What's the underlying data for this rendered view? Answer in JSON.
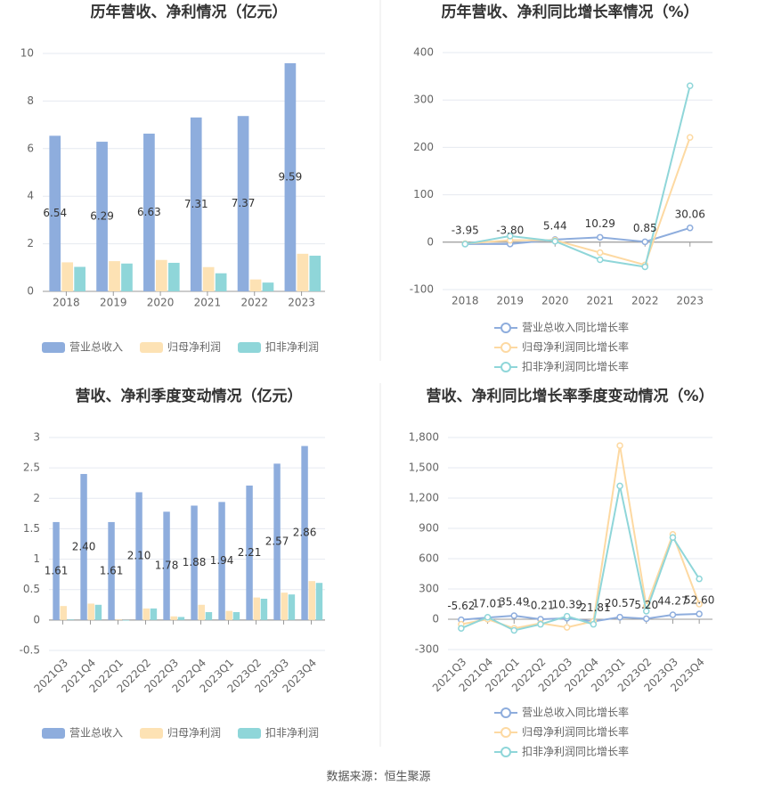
{
  "chart_data": [
    {
      "type": "bar",
      "title": "历年营收、净利情况（亿元）",
      "categories": [
        "2018",
        "2019",
        "2020",
        "2021",
        "2022",
        "2023"
      ],
      "series": [
        {
          "name": "营业总收入",
          "color": "#8eaddd",
          "values": [
            6.54,
            6.29,
            6.63,
            7.31,
            7.37,
            9.59
          ],
          "labels": true
        },
        {
          "name": "归母净利润",
          "color": "#fde2b4",
          "values": [
            1.22,
            1.27,
            1.32,
            1.02,
            0.5,
            1.58
          ]
        },
        {
          "name": "扣非净利润",
          "color": "#8fd6d9",
          "values": [
            1.03,
            1.17,
            1.2,
            0.76,
            0.37,
            1.5
          ]
        }
      ],
      "ylim": [
        0,
        10
      ],
      "yticks": [
        0,
        2,
        4,
        6,
        8,
        10
      ],
      "grid": true,
      "legend": "bottom"
    },
    {
      "type": "line",
      "title": "历年营收、净利同比增长率情况（%）",
      "categories": [
        "2018",
        "2019",
        "2020",
        "2021",
        "2022",
        "2023"
      ],
      "series": [
        {
          "name": "营业总收入同比增长率",
          "color": "#8eaddd",
          "values": [
            -3.95,
            -3.8,
            5.44,
            10.29,
            0.85,
            30.06
          ],
          "value_labels": [
            "-3.95",
            "-3.80",
            "5.44",
            "10.29",
            "0.85",
            "30.06"
          ],
          "labels": true
        },
        {
          "name": "归母净利润同比增长率",
          "color": "#fdd9a2",
          "values": [
            -3,
            4,
            4,
            -22,
            -48,
            221
          ]
        },
        {
          "name": "扣非净利润同比增长率",
          "color": "#8fd6d9",
          "values": [
            -4,
            13,
            2,
            -37,
            -52,
            330
          ]
        }
      ],
      "ylim": [
        -100,
        400
      ],
      "yticks": [
        -100,
        0,
        100,
        200,
        300,
        400
      ],
      "grid": true,
      "legend": "bottom"
    },
    {
      "type": "bar",
      "title": "营收、净利季度变动情况（亿元）",
      "categories": [
        "2021Q3",
        "2021Q4",
        "2022Q1",
        "2022Q2",
        "2022Q3",
        "2022Q4",
        "2023Q1",
        "2023Q2",
        "2023Q3",
        "2023Q4"
      ],
      "series": [
        {
          "name": "营业总收入",
          "color": "#8eaddd",
          "values": [
            1.61,
            2.4,
            1.61,
            2.1,
            1.78,
            1.88,
            1.94,
            2.21,
            2.57,
            2.86
          ],
          "value_labels": [
            "1.61",
            "2.40",
            "1.61",
            "2.10",
            "1.78",
            "1.88",
            "1.94",
            "2.21",
            "2.57",
            "2.86"
          ],
          "labels": true
        },
        {
          "name": "归母净利润",
          "color": "#fde2b4",
          "values": [
            0.23,
            0.27,
            0.01,
            0.19,
            0.06,
            0.25,
            0.15,
            0.37,
            0.45,
            0.64
          ]
        },
        {
          "name": "扣非净利润",
          "color": "#8fd6d9",
          "values": [
            0.01,
            0.25,
            -0.01,
            0.19,
            0.05,
            0.13,
            0.13,
            0.35,
            0.42,
            0.61
          ]
        }
      ],
      "ylim": [
        -0.5,
        3
      ],
      "yticks": [
        -0.5,
        0,
        0.5,
        1,
        1.5,
        2,
        2.5,
        3
      ],
      "grid": true,
      "legend": "bottom"
    },
    {
      "type": "line",
      "title": "营收、净利同比增长率季度变动情况（%）",
      "categories": [
        "2021Q3",
        "2021Q4",
        "2022Q1",
        "2022Q2",
        "2022Q3",
        "2022Q4",
        "2023Q1",
        "2023Q2",
        "2023Q3",
        "2023Q4"
      ],
      "series": [
        {
          "name": "营业总收入同比增长率",
          "color": "#8eaddd",
          "values": [
            -5.62,
            17.01,
            35.49,
            -0.21,
            10.39,
            -21.81,
            20.57,
            5.2,
            44.27,
            52.6
          ],
          "value_labels": [
            "-5.62",
            "17.01",
            "35.49",
            "-0.21",
            "10.39",
            "-21.81",
            "20.57",
            "5.20",
            "44.27",
            "52.60"
          ],
          "labels": true
        },
        {
          "name": "归母净利润同比增长率",
          "color": "#fdd9a2",
          "values": [
            -50,
            0,
            -90,
            -40,
            -80,
            -20,
            1720,
            130,
            840,
            150
          ]
        },
        {
          "name": "扣非净利润同比增长率",
          "color": "#8fd6d9",
          "values": [
            -90,
            20,
            -110,
            -50,
            30,
            -50,
            1320,
            80,
            810,
            400
          ]
        }
      ],
      "ylim": [
        -300,
        1800
      ],
      "yticks": [
        -300,
        0,
        300,
        600,
        900,
        {
          "value": 1200,
          "label": "1,200"
        },
        {
          "value": 1500,
          "label": "1,500"
        },
        {
          "value": 1800,
          "label": "1,800"
        }
      ],
      "grid": true,
      "legend": "bottom"
    }
  ],
  "source": "数据来源：恒生聚源"
}
